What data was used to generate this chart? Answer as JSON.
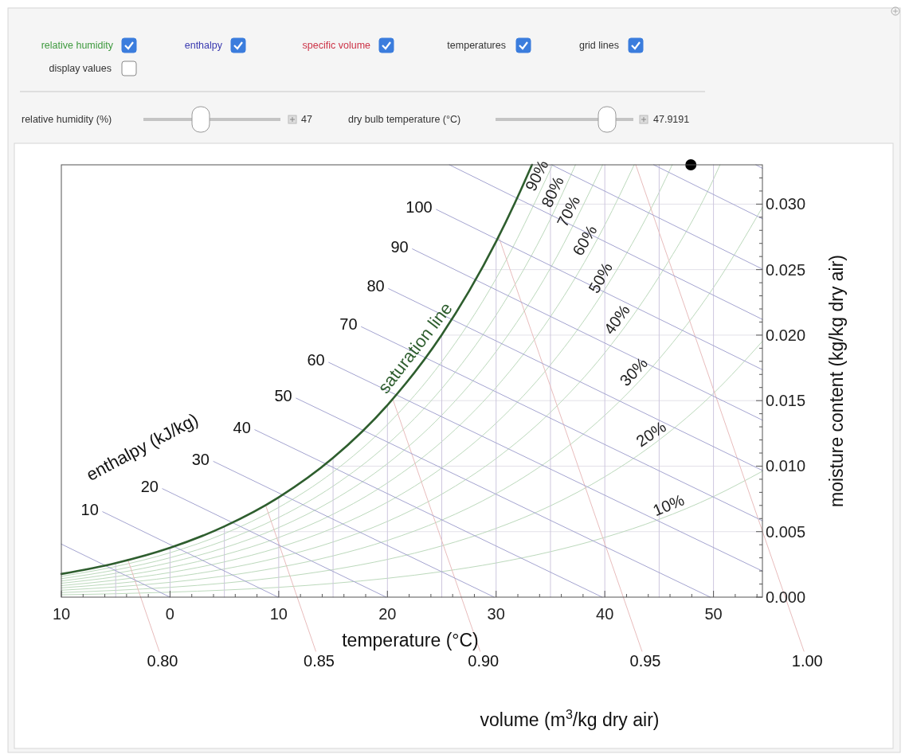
{
  "chart_data": {
    "type": "line",
    "xlabel": "temperature (°C)",
    "ylabel": "moisture content (kg/kg dry air)",
    "xlim": [
      -10,
      54.5
    ],
    "ylim": [
      0,
      0.033
    ],
    "xticks": [
      {
        "value": -10,
        "label": "10"
      },
      {
        "value": -8,
        "label": null
      },
      {
        "value": -6,
        "label": null
      },
      {
        "value": -4,
        "label": null
      },
      {
        "value": -2,
        "label": null
      },
      0,
      {
        "value": 2,
        "label": null
      },
      {
        "value": 4,
        "label": null
      },
      {
        "value": 6,
        "label": null
      },
      {
        "value": 8,
        "label": null
      },
      10,
      {
        "value": 12,
        "label": null
      },
      {
        "value": 14,
        "label": null
      },
      {
        "value": 16,
        "label": null
      },
      {
        "value": 18,
        "label": null
      },
      20,
      {
        "value": 22,
        "label": null
      },
      {
        "value": 24,
        "label": null
      },
      {
        "value": 26,
        "label": null
      },
      {
        "value": 28,
        "label": null
      },
      30,
      {
        "value": 32,
        "label": null
      },
      {
        "value": 34,
        "label": null
      },
      {
        "value": 36,
        "label": null
      },
      {
        "value": 38,
        "label": null
      },
      40,
      {
        "value": 42,
        "label": null
      },
      {
        "value": 44,
        "label": null
      },
      {
        "value": 46,
        "label": null
      },
      {
        "value": 48,
        "label": null
      },
      50,
      {
        "value": 52,
        "label": null
      },
      {
        "value": 54,
        "label": null
      }
    ],
    "yticks": [
      {
        "value": 0,
        "label": "0.000"
      },
      {
        "value": 0.001,
        "label": null
      },
      {
        "value": 0.002,
        "label": null
      },
      {
        "value": 0.003,
        "label": null
      },
      {
        "value": 0.004,
        "label": null
      },
      {
        "value": 0.005,
        "label": "0.005"
      },
      {
        "value": 0.006,
        "label": null
      },
      {
        "value": 0.007,
        "label": null
      },
      {
        "value": 0.008,
        "label": null
      },
      {
        "value": 0.009,
        "label": null
      },
      {
        "value": 0.01,
        "label": "0.010"
      },
      {
        "value": 0.011,
        "label": null
      },
      {
        "value": 0.012,
        "label": null
      },
      {
        "value": 0.013,
        "label": null
      },
      {
        "value": 0.014,
        "label": null
      },
      {
        "value": 0.015,
        "label": "0.015"
      },
      {
        "value": 0.016,
        "label": null
      },
      {
        "value": 0.017,
        "label": null
      },
      {
        "value": 0.018,
        "label": null
      },
      {
        "value": 0.019,
        "label": null
      },
      {
        "value": 0.02,
        "label": "0.020"
      },
      {
        "value": 0.021,
        "label": null
      },
      {
        "value": 0.022,
        "label": null
      },
      {
        "value": 0.023,
        "label": null
      },
      {
        "value": 0.024,
        "label": null
      },
      {
        "value": 0.025,
        "label": "0.025"
      },
      {
        "value": 0.026,
        "label": null
      },
      {
        "value": 0.027,
        "label": null
      },
      {
        "value": 0.028,
        "label": null
      },
      {
        "value": 0.029,
        "label": null
      },
      {
        "value": 0.03,
        "label": "0.030"
      },
      {
        "value": 0.031,
        "label": null
      },
      {
        "value": 0.032,
        "label": null
      }
    ],
    "annotations": [
      "enthalpy (kJ/kg)",
      "volume (m$^{3}$/kg dry air)",
      "relative humidity",
      "enthalpy",
      "specific volume",
      "temperatures",
      "grid lines",
      "display values",
      "relative humidity (%)",
      "47",
      "dry bulb temperature (°C)",
      "47.9191"
    ],
    "series": [
      {
        "color": "#cdc6de",
        "x": [
          -5,
          -5
        ],
        "values": [
          0,
          0.0026
        ]
      },
      {
        "color": "#cdc6de",
        "x": [
          0,
          0
        ],
        "values": [
          0,
          0.00377
        ]
      },
      {
        "color": "#cdc6de",
        "x": [
          5,
          5
        ],
        "values": [
          0,
          0.0054
        ]
      },
      {
        "color": "#cdc6de",
        "x": [
          10,
          10
        ],
        "values": [
          0,
          0.00762
        ]
      },
      {
        "color": "#cdc6de",
        "x": [
          15,
          15
        ],
        "values": [
          0,
          0.01063
        ]
      },
      {
        "color": "#cdc6de",
        "x": [
          20,
          20
        ],
        "values": [
          0,
          0.01466
        ]
      },
      {
        "color": "#cdc6de",
        "x": [
          25,
          25
        ],
        "values": [
          0,
          0.02003
        ]
      },
      {
        "color": "#cdc6de",
        "x": [
          30,
          30
        ],
        "values": [
          0,
          0.02714
        ]
      },
      {
        "color": "#cdc6de",
        "x": [
          35,
          35
        ],
        "values": [
          0,
          0.033
        ]
      },
      {
        "color": "#cdc6de",
        "x": [
          40,
          40
        ],
        "values": [
          0,
          0.033
        ]
      },
      {
        "color": "#cdc6de",
        "x": [
          45,
          45
        ],
        "values": [
          0,
          0.033
        ]
      },
      {
        "color": "#cdc6de",
        "x": [
          50,
          50
        ],
        "values": [
          0,
          0.033
        ]
      },
      {
        "name": "10%",
        "color": "#bcd9bc",
        "x": [
          -10,
          -5,
          0,
          5,
          10,
          15,
          20,
          25,
          30,
          35,
          40,
          45,
          50,
          54.5
        ],
        "values": [
          0.00018,
          0.00026,
          0.00038,
          0.00054,
          0.00075,
          0.00105,
          0.00144,
          0.00195,
          0.00261,
          0.00347,
          0.00456,
          0.00594,
          0.00768,
          0.00961
        ]
      },
      {
        "name": "20%",
        "color": "#bcd9bc",
        "x": [
          -10,
          -5,
          0,
          5,
          10,
          15,
          20,
          25,
          30,
          35,
          40,
          45,
          50,
          54.5
        ],
        "values": [
          0.00035,
          0.00052,
          0.00075,
          0.00107,
          0.00151,
          0.0021,
          0.00288,
          0.00391,
          0.00525,
          0.00697,
          0.00919,
          0.012,
          0.01556,
          0.01953
        ]
      },
      {
        "name": "30%",
        "color": "#bcd9bc",
        "x": [
          -10,
          -5,
          0,
          5,
          10,
          15,
          20,
          25,
          30,
          35,
          40,
          45,
          50,
          54.5
        ],
        "values": [
          0.00053,
          0.00078,
          0.00113,
          0.00161,
          0.00227,
          0.00315,
          0.00433,
          0.00588,
          0.0079,
          0.01052,
          0.01388,
          0.01818,
          0.02363,
          0.02976
        ]
      },
      {
        "name": "40%",
        "color": "#bcd9bc",
        "x": [
          -10,
          -5,
          0,
          5,
          10,
          15,
          20,
          25,
          30,
          35,
          40,
          45,
          50,
          50.6
        ],
        "values": [
          0.00071,
          0.00104,
          0.0015,
          0.00215,
          0.00303,
          0.00421,
          0.00578,
          0.00786,
          0.01058,
          0.01411,
          0.01865,
          0.02448,
          0.03191,
          0.033
        ]
      },
      {
        "name": "50%",
        "color": "#bcd9bc",
        "x": [
          -10,
          -5,
          0,
          5,
          10,
          15,
          20,
          25,
          30,
          35,
          40,
          45,
          46.2
        ],
        "values": [
          0.00088,
          0.0013,
          0.00188,
          0.00269,
          0.00379,
          0.00527,
          0.00725,
          0.00986,
          0.01328,
          0.01773,
          0.02349,
          0.0309,
          0.033
        ]
      },
      {
        "name": "60%",
        "color": "#bcd9bc",
        "x": [
          -10,
          -5,
          0,
          5,
          10,
          15,
          20,
          25,
          30,
          35,
          40,
          42.7
        ],
        "values": [
          0.00106,
          0.00156,
          0.00226,
          0.00323,
          0.00455,
          0.00633,
          0.00872,
          0.01187,
          0.01601,
          0.0214,
          0.0284,
          0.033
        ]
      },
      {
        "name": "70%",
        "color": "#bcd9bc",
        "x": [
          -10,
          -5,
          0,
          5,
          10,
          15,
          20,
          25,
          30,
          35,
          39.8
        ],
        "values": [
          0.00123,
          0.00182,
          0.00264,
          0.00377,
          0.00531,
          0.0074,
          0.01019,
          0.01389,
          0.01875,
          0.02511,
          0.033
        ]
      },
      {
        "name": "80%",
        "color": "#bcd9bc",
        "x": [
          -10,
          -5,
          0,
          5,
          10,
          15,
          20,
          25,
          30,
          35,
          37.3
        ],
        "values": [
          0.00141,
          0.00208,
          0.00301,
          0.00431,
          0.00608,
          0.00847,
          0.01167,
          0.01592,
          0.02153,
          0.02887,
          0.033
        ]
      },
      {
        "name": "90%",
        "color": "#bcd9bc",
        "x": [
          -10,
          -5,
          0,
          5,
          10,
          15,
          20,
          25,
          30,
          35.2
        ],
        "values": [
          0.00159,
          0.00234,
          0.00339,
          0.00485,
          0.00685,
          0.00955,
          0.01317,
          0.01797,
          0.02432,
          0.033
        ]
      },
      {
        "name": "0.80",
        "color": "#e8bcbc",
        "x": [
          -3.9,
          -2.7
        ],
        "values": [
          0.0029,
          0
        ]
      },
      {
        "name": "0.85",
        "color": "#e8bcbc",
        "x": [
          8.8,
          11.7
        ],
        "values": [
          0.007,
          0
        ]
      },
      {
        "name": "0.90",
        "color": "#e8bcbc",
        "x": [
          20.5,
          26.8
        ],
        "values": [
          0.0151,
          0
        ]
      },
      {
        "name": "0.95",
        "color": "#e8bcbc",
        "x": [
          30.2,
          41.7
        ],
        "values": [
          0.0276,
          0
        ]
      },
      {
        "name": "1.00",
        "color": "#e8bcbc",
        "x": [
          42.85,
          54.5
        ],
        "values": [
          0.033,
          0.00504
        ]
      },
      {
        "color": "#a4a4d0",
        "x": [
          -10,
          0
        ],
        "values": [
          0.00405,
          0
        ]
      },
      {
        "name": "10",
        "color": "#a4a4d0",
        "x": [
          -6.2,
          9.94
        ],
        "values": [
          0.00652,
          0
        ]
      },
      {
        "name": "20",
        "color": "#a4a4d0",
        "x": [
          -0.7,
          19.88
        ],
        "values": [
          0.00828,
          0
        ]
      },
      {
        "name": "30",
        "color": "#a4a4d0",
        "x": [
          4,
          29.82
        ],
        "values": [
          0.01036,
          0
        ]
      },
      {
        "name": "40",
        "color": "#a4a4d0",
        "x": [
          7.8,
          39.76
        ],
        "values": [
          0.01278,
          0
        ]
      },
      {
        "name": "50",
        "color": "#a4a4d0",
        "x": [
          11.6,
          49.7
        ],
        "values": [
          0.01519,
          0
        ]
      },
      {
        "name": "60",
        "color": "#a4a4d0",
        "x": [
          14.6,
          54.5
        ],
        "values": [
          0.01792,
          0.00199
        ]
      },
      {
        "name": "70",
        "color": "#a4a4d0",
        "x": [
          17.6,
          54.5
        ],
        "values": [
          0.02064,
          0.00583
        ]
      },
      {
        "name": "80",
        "color": "#a4a4d0",
        "x": [
          20.1,
          54.5
        ],
        "values": [
          0.02355,
          0.00967
        ]
      },
      {
        "name": "90",
        "color": "#a4a4d0",
        "x": [
          22.3,
          54.5
        ],
        "values": [
          0.02658,
          0.01351
        ]
      },
      {
        "name": "100",
        "color": "#a4a4d0",
        "x": [
          24.5,
          54.5
        ],
        "values": [
          0.02959,
          0.01736
        ]
      },
      {
        "color": "#a4a4d0",
        "x": [
          25.7,
          54.5
        ],
        "values": [
          0.033,
          0.0212
        ]
      },
      {
        "color": "#a4a4d0",
        "x": [
          35.1,
          54.5
        ],
        "values": [
          0.033,
          0.02504
        ]
      },
      {
        "color": "#a4a4d0",
        "x": [
          44.5,
          54.5
        ],
        "values": [
          0.033,
          0.02888
        ]
      },
      {
        "color": "#a4a4d0",
        "x": [
          53.9,
          54.5
        ],
        "values": [
          0.033,
          0.03273
        ]
      },
      {
        "name": "saturation line",
        "color": "#2e5e2e",
        "x": [
          -10,
          -5,
          0,
          5,
          10,
          15,
          20,
          25,
          27.5,
          30,
          32,
          33.3
        ],
        "values": [
          0.00177,
          0.0026,
          0.00377,
          0.0054,
          0.00762,
          0.01063,
          0.01466,
          0.02003,
          0.02334,
          0.02714,
          0.03058,
          0.033
        ]
      },
      {
        "type": "scatter",
        "color": "#000000",
        "x": [
          47.9191
        ],
        "values": [
          0.033
        ]
      },
      {
        "color": "#e2e0e8",
        "x": [
          3.8,
          54.5
        ],
        "values": [
          0.005,
          0.005
        ]
      },
      {
        "color": "#e2e0e8",
        "x": [
          14,
          54.5
        ],
        "values": [
          0.01,
          0.01
        ]
      },
      {
        "color": "#e2e0e8",
        "x": [
          20.3,
          54.5
        ],
        "values": [
          0.015,
          0.015
        ]
      },
      {
        "color": "#e2e0e8",
        "x": [
          25,
          54.5
        ],
        "values": [
          0.02,
          0.02
        ]
      },
      {
        "color": "#e2e0e8",
        "x": [
          28.6,
          54.5
        ],
        "values": [
          0.025,
          0.025
        ]
      },
      {
        "color": "#e2e0e8",
        "x": [
          31.7,
          54.5
        ],
        "values": [
          0.03,
          0.03
        ]
      }
    ]
  }
}
